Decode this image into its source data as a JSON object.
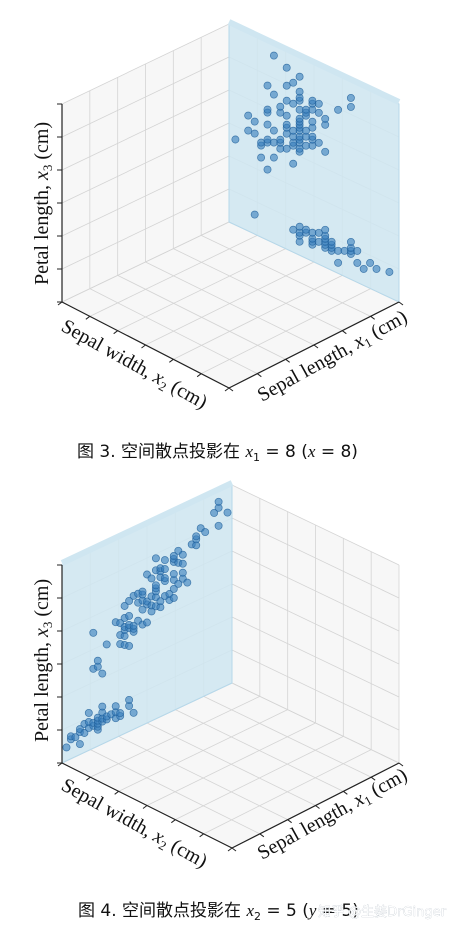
{
  "chart_data": [
    {
      "type": "scatter",
      "projection": "3d",
      "projected_plane": "x1 = 8",
      "xlabel": "Sepal length, x1 (cm)",
      "ylabel": "Sepal width, x2 (cm)",
      "zlabel": "Petal length, x3 (cm)",
      "grid": true,
      "point_color": "#3a7fbd",
      "plane_color": "#cfe6f1",
      "points_note": "points lie on the back plane x1 = 8; coordinates given as (x2, x3)",
      "points": [
        [
          2.0,
          3.5
        ],
        [
          2.2,
          4.0
        ],
        [
          2.2,
          4.5
        ],
        [
          2.3,
          1.3
        ],
        [
          2.3,
          4.0
        ],
        [
          2.3,
          4.4
        ],
        [
          2.4,
          3.3
        ],
        [
          2.4,
          3.7
        ],
        [
          2.4,
          3.8
        ],
        [
          2.5,
          3.0
        ],
        [
          2.5,
          3.9
        ],
        [
          2.5,
          4.0
        ],
        [
          2.5,
          4.5
        ],
        [
          2.5,
          4.9
        ],
        [
          2.5,
          5.0
        ],
        [
          2.5,
          5.8
        ],
        [
          2.6,
          3.5
        ],
        [
          2.6,
          4.0
        ],
        [
          2.6,
          4.4
        ],
        [
          2.6,
          5.6
        ],
        [
          2.6,
          6.9
        ],
        [
          2.7,
          3.9
        ],
        [
          2.7,
          4.1
        ],
        [
          2.7,
          4.2
        ],
        [
          2.7,
          5.1
        ],
        [
          2.7,
          5.3
        ],
        [
          2.8,
          4.0
        ],
        [
          2.8,
          4.5
        ],
        [
          2.8,
          4.7
        ],
        [
          2.8,
          4.8
        ],
        [
          2.8,
          5.1
        ],
        [
          2.8,
          5.6
        ],
        [
          2.8,
          6.1
        ],
        [
          2.8,
          6.7
        ],
        [
          2.9,
          1.4
        ],
        [
          2.9,
          3.6
        ],
        [
          2.9,
          4.2
        ],
        [
          2.9,
          4.3
        ],
        [
          2.9,
          4.5
        ],
        [
          2.9,
          4.7
        ],
        [
          2.9,
          5.6
        ],
        [
          2.9,
          6.3
        ],
        [
          3.0,
          1.1
        ],
        [
          3.0,
          1.3
        ],
        [
          3.0,
          1.4
        ],
        [
          3.0,
          1.6
        ],
        [
          3.0,
          4.1
        ],
        [
          3.0,
          4.2
        ],
        [
          3.0,
          4.4
        ],
        [
          3.0,
          4.5
        ],
        [
          3.0,
          4.6
        ],
        [
          3.0,
          4.8
        ],
        [
          3.0,
          4.9
        ],
        [
          3.0,
          5.0
        ],
        [
          3.0,
          5.1
        ],
        [
          3.0,
          5.2
        ],
        [
          3.0,
          5.5
        ],
        [
          3.0,
          5.8
        ],
        [
          3.0,
          5.9
        ],
        [
          3.0,
          6.1
        ],
        [
          3.0,
          6.6
        ],
        [
          3.1,
          1.5
        ],
        [
          3.1,
          1.6
        ],
        [
          3.1,
          4.4
        ],
        [
          3.1,
          4.7
        ],
        [
          3.1,
          4.9
        ],
        [
          3.1,
          5.4
        ],
        [
          3.1,
          5.5
        ],
        [
          3.1,
          5.6
        ],
        [
          3.2,
          1.2
        ],
        [
          3.2,
          1.3
        ],
        [
          3.2,
          1.4
        ],
        [
          3.2,
          1.6
        ],
        [
          3.2,
          4.5
        ],
        [
          3.2,
          4.7
        ],
        [
          3.2,
          4.8
        ],
        [
          3.2,
          5.1
        ],
        [
          3.2,
          5.3
        ],
        [
          3.2,
          5.7
        ],
        [
          3.2,
          5.9
        ],
        [
          3.2,
          6.0
        ],
        [
          3.3,
          1.4
        ],
        [
          3.3,
          1.7
        ],
        [
          3.3,
          4.7
        ],
        [
          3.3,
          5.7
        ],
        [
          3.3,
          6.0
        ],
        [
          3.4,
          1.3
        ],
        [
          3.4,
          1.4
        ],
        [
          3.4,
          1.5
        ],
        [
          3.4,
          1.6
        ],
        [
          3.4,
          1.7
        ],
        [
          3.4,
          1.9
        ],
        [
          3.4,
          4.5
        ],
        [
          3.4,
          5.4
        ],
        [
          3.4,
          5.6
        ],
        [
          3.5,
          1.3
        ],
        [
          3.5,
          1.4
        ],
        [
          3.5,
          1.5
        ],
        [
          3.5,
          1.6
        ],
        [
          3.6,
          1.0
        ],
        [
          3.6,
          1.4
        ],
        [
          3.6,
          6.1
        ],
        [
          3.7,
          1.5
        ],
        [
          3.8,
          1.5
        ],
        [
          3.8,
          1.6
        ],
        [
          3.8,
          1.7
        ],
        [
          3.8,
          1.9
        ],
        [
          3.8,
          6.4
        ],
        [
          3.8,
          6.7
        ],
        [
          3.9,
          1.3
        ],
        [
          3.9,
          1.7
        ],
        [
          4.0,
          1.2
        ],
        [
          4.1,
          1.5
        ],
        [
          4.2,
          1.4
        ],
        [
          4.4,
          1.5
        ]
      ],
      "zlim": [
        1,
        7
      ]
    },
    {
      "type": "scatter",
      "projection": "3d",
      "projected_plane": "x2 = 5",
      "xlabel": "Sepal length, x1 (cm)",
      "ylabel": "Sepal width, x2 (cm)",
      "zlabel": "Petal length, x3 (cm)",
      "grid": true,
      "point_color": "#3a7fbd",
      "plane_color": "#cfe6f1",
      "points_note": "points lie on the left plane x2 = 5; coordinates given as (x1, x3)",
      "points": [
        [
          4.3,
          1.1
        ],
        [
          4.4,
          1.3
        ],
        [
          4.4,
          1.4
        ],
        [
          4.5,
          1.3
        ],
        [
          4.6,
          1.0
        ],
        [
          4.6,
          1.4
        ],
        [
          4.6,
          1.5
        ],
        [
          4.7,
          1.3
        ],
        [
          4.7,
          1.6
        ],
        [
          4.8,
          1.4
        ],
        [
          4.8,
          1.6
        ],
        [
          4.8,
          1.9
        ],
        [
          4.9,
          1.4
        ],
        [
          4.9,
          1.5
        ],
        [
          4.9,
          3.3
        ],
        [
          4.9,
          4.5
        ],
        [
          5.0,
          1.2
        ],
        [
          5.0,
          1.3
        ],
        [
          5.0,
          1.4
        ],
        [
          5.0,
          1.5
        ],
        [
          5.0,
          1.6
        ],
        [
          5.0,
          3.3
        ],
        [
          5.0,
          3.5
        ],
        [
          5.1,
          1.4
        ],
        [
          5.1,
          1.5
        ],
        [
          5.1,
          1.7
        ],
        [
          5.1,
          1.9
        ],
        [
          5.1,
          3.0
        ],
        [
          5.2,
          1.4
        ],
        [
          5.2,
          1.5
        ],
        [
          5.2,
          3.9
        ],
        [
          5.3,
          1.5
        ],
        [
          5.4,
          1.3
        ],
        [
          5.4,
          1.5
        ],
        [
          5.4,
          1.7
        ],
        [
          5.4,
          4.5
        ],
        [
          5.5,
          1.3
        ],
        [
          5.5,
          1.4
        ],
        [
          5.5,
          3.7
        ],
        [
          5.5,
          4.0
        ],
        [
          5.5,
          4.4
        ],
        [
          5.6,
          3.6
        ],
        [
          5.6,
          3.9
        ],
        [
          5.6,
          4.1
        ],
        [
          5.6,
          4.2
        ],
        [
          5.6,
          4.5
        ],
        [
          5.6,
          4.9
        ],
        [
          5.7,
          1.5
        ],
        [
          5.7,
          1.7
        ],
        [
          5.7,
          3.5
        ],
        [
          5.7,
          4.1
        ],
        [
          5.7,
          4.2
        ],
        [
          5.7,
          4.5
        ],
        [
          5.7,
          5.0
        ],
        [
          5.8,
          1.2
        ],
        [
          5.8,
          3.9
        ],
        [
          5.8,
          4.0
        ],
        [
          5.8,
          4.1
        ],
        [
          5.8,
          5.1
        ],
        [
          5.9,
          4.2
        ],
        [
          5.9,
          4.8
        ],
        [
          5.9,
          5.1
        ],
        [
          6.0,
          4.0
        ],
        [
          6.0,
          4.5
        ],
        [
          6.0,
          4.8
        ],
        [
          6.0,
          5.0
        ],
        [
          6.0,
          5.1
        ],
        [
          6.1,
          4.0
        ],
        [
          6.1,
          4.6
        ],
        [
          6.1,
          4.7
        ],
        [
          6.1,
          5.6
        ],
        [
          6.2,
          4.3
        ],
        [
          6.2,
          4.5
        ],
        [
          6.2,
          4.8
        ],
        [
          6.2,
          5.4
        ],
        [
          6.3,
          4.4
        ],
        [
          6.3,
          4.7
        ],
        [
          6.3,
          4.9
        ],
        [
          6.3,
          5.0
        ],
        [
          6.3,
          5.1
        ],
        [
          6.3,
          5.6
        ],
        [
          6.3,
          6.0
        ],
        [
          6.4,
          4.3
        ],
        [
          6.4,
          4.5
        ],
        [
          6.4,
          5.3
        ],
        [
          6.4,
          5.5
        ],
        [
          6.4,
          5.6
        ],
        [
          6.5,
          4.6
        ],
        [
          6.5,
          5.1
        ],
        [
          6.5,
          5.2
        ],
        [
          6.5,
          5.5
        ],
        [
          6.5,
          5.8
        ],
        [
          6.6,
          4.4
        ],
        [
          6.6,
          4.6
        ],
        [
          6.7,
          4.4
        ],
        [
          6.7,
          4.7
        ],
        [
          6.7,
          5.0
        ],
        [
          6.7,
          5.2
        ],
        [
          6.7,
          5.6
        ],
        [
          6.7,
          5.7
        ],
        [
          6.7,
          5.8
        ],
        [
          6.8,
          4.8
        ],
        [
          6.8,
          5.5
        ],
        [
          6.8,
          5.9
        ],
        [
          6.9,
          4.9
        ],
        [
          6.9,
          5.1
        ],
        [
          6.9,
          5.4
        ],
        [
          6.9,
          5.7
        ],
        [
          7.0,
          4.7
        ],
        [
          7.1,
          5.9
        ],
        [
          7.2,
          5.8
        ],
        [
          7.2,
          6.0
        ],
        [
          7.2,
          6.1
        ],
        [
          7.3,
          6.3
        ],
        [
          7.4,
          6.1
        ],
        [
          7.6,
          6.6
        ],
        [
          7.7,
          6.1
        ],
        [
          7.7,
          6.7
        ],
        [
          7.7,
          6.9
        ],
        [
          7.9,
          6.4
        ]
      ],
      "zlim": [
        1,
        7
      ]
    }
  ],
  "panels": [
    {
      "zlabel_text": "Petal length, ",
      "zlabel_var": "x",
      "zlabel_sub": "3",
      "zlabel_unit": " (cm)",
      "ylabel_text": "Sepal width, ",
      "ylabel_var": "x",
      "ylabel_sub": "2",
      "ylabel_unit": " (cm)",
      "xlabel_text": "Sepal length, ",
      "xlabel_var": "x",
      "xlabel_sub": "1",
      "xlabel_unit": " (cm)",
      "caption_prefix": "图 3. 空间散点投影在 ",
      "caption_var": "x",
      "caption_sub": "1",
      "caption_mid": " = 8 (",
      "caption_var2": "x",
      "caption_end": " = 8)"
    },
    {
      "zlabel_text": "Petal length, ",
      "zlabel_var": "x",
      "zlabel_sub": "3",
      "zlabel_unit": " (cm)",
      "ylabel_text": "Sepal width, ",
      "ylabel_var": "x",
      "ylabel_sub": "2",
      "ylabel_unit": " (cm)",
      "xlabel_text": "Sepal length, ",
      "xlabel_var": "x",
      "xlabel_sub": "1",
      "xlabel_unit": " (cm)",
      "caption_prefix": "图 4. 空间散点投影在 ",
      "caption_var": "x",
      "caption_sub": "2",
      "caption_mid": " = 5 (",
      "caption_var2": "y",
      "caption_end": " = 5)"
    }
  ],
  "watermark": "知乎 @生姜DrGinger"
}
